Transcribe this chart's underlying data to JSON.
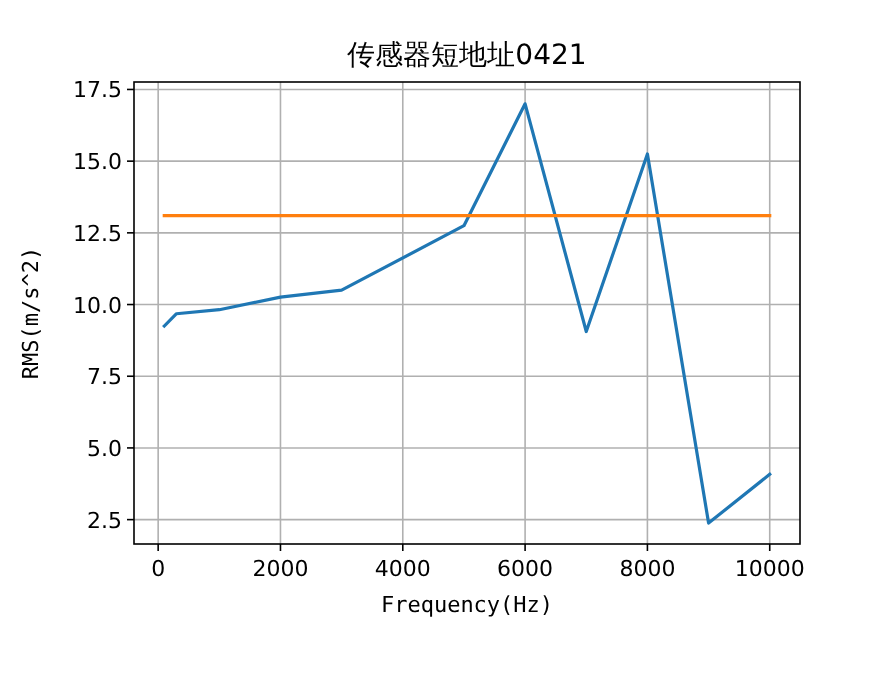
{
  "chart_data": {
    "type": "line",
    "title": "传感器短地址0421",
    "xlabel": "Frequency(Hz)",
    "ylabel": "RMS(m/s^2)",
    "series": [
      {
        "color": "#1f77b4",
        "x": [
          100,
          300,
          1000,
          2000,
          3000,
          5000,
          6000,
          7000,
          8000,
          9000,
          10000
        ],
        "values": [
          9.25,
          9.68,
          9.82,
          10.26,
          10.5,
          12.75,
          17.0,
          9.06,
          15.25,
          2.38,
          4.08
        ]
      },
      {
        "color": "#ff7f0e",
        "x": [
          100,
          10000
        ],
        "values": [
          13.1,
          13.1
        ]
      }
    ],
    "xlim": [
      -395,
      10495
    ],
    "ylim": [
      1.65,
      17.76
    ],
    "xticks": [
      0,
      2000,
      4000,
      6000,
      8000,
      10000
    ],
    "yticks": [
      {
        "value": 2.5,
        "label": "2.5"
      },
      {
        "value": 5,
        "label": "5.0"
      },
      {
        "value": 7.5,
        "label": "7.5"
      },
      {
        "value": 10,
        "label": "10.0"
      },
      {
        "value": 12.5,
        "label": "12.5"
      },
      {
        "value": 15,
        "label": "15.0"
      },
      {
        "value": 17.5,
        "label": "17.5"
      }
    ],
    "grid": true,
    "line_style": "solid"
  }
}
